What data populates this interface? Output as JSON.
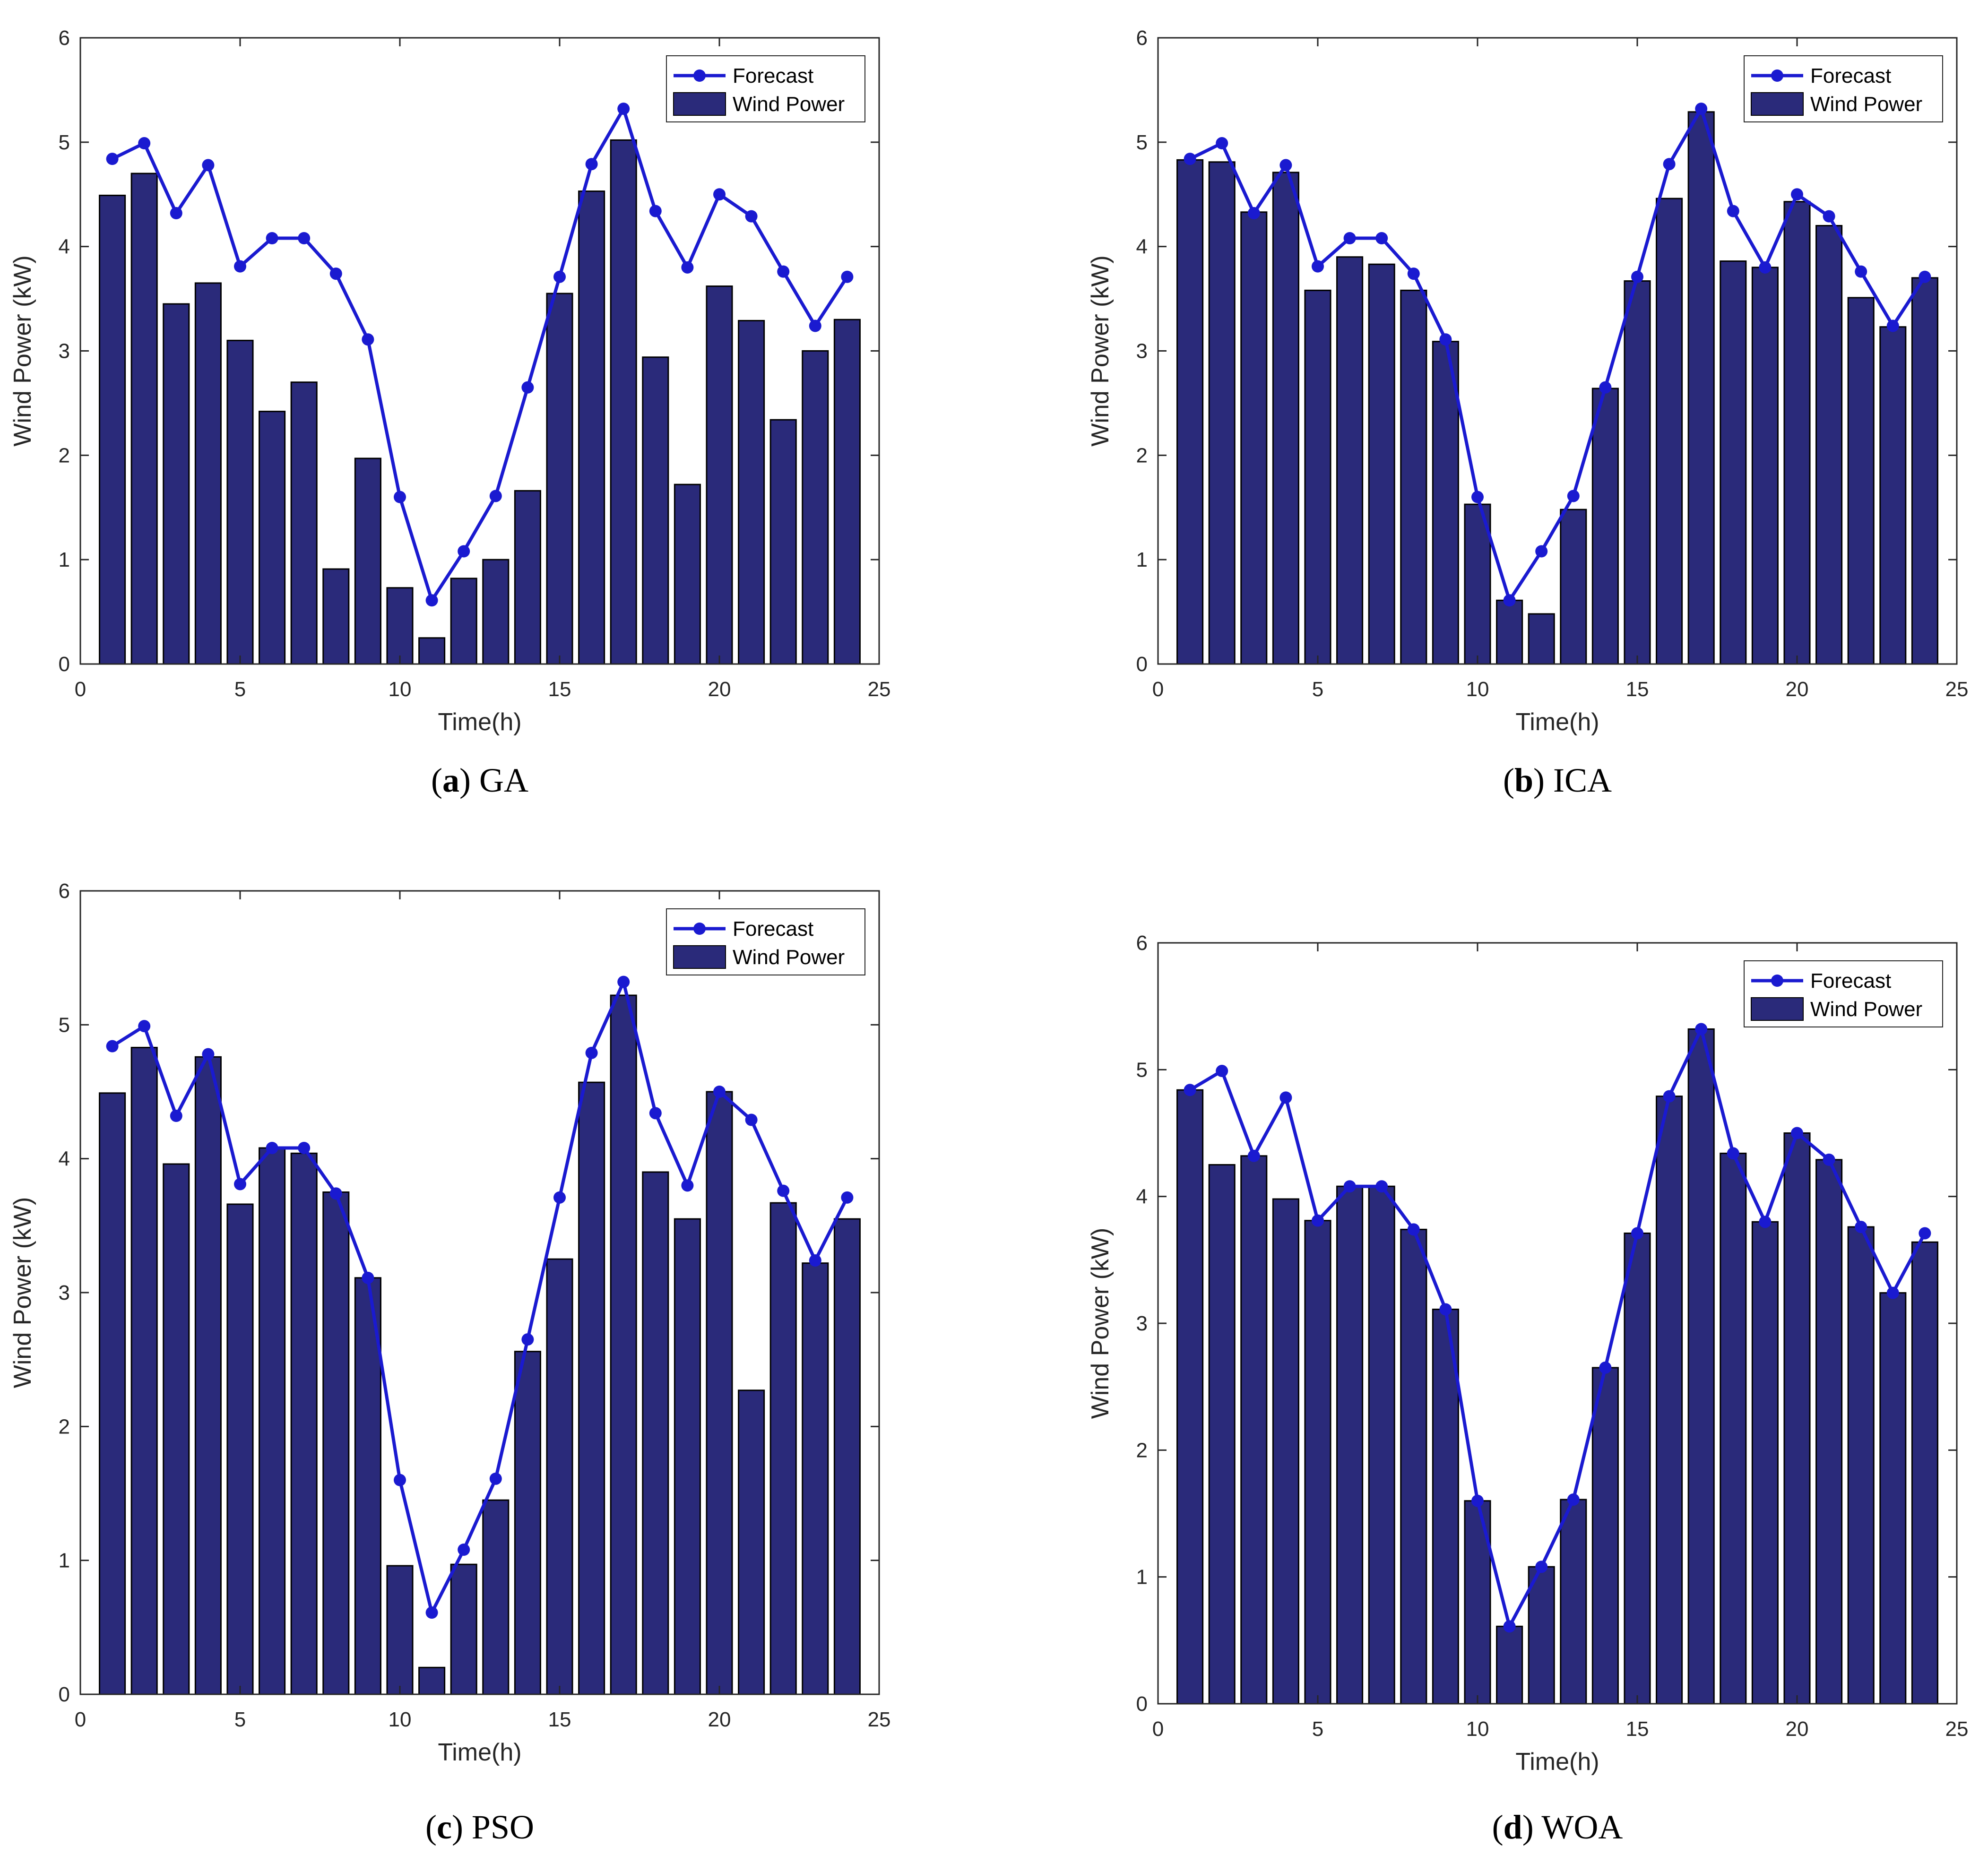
{
  "figure": {
    "colors": {
      "bar_fill": "#2a2a7a",
      "bar_edge": "#000000",
      "line": "#1a1ad0",
      "axes": "#262626",
      "background": "#ffffff"
    }
  },
  "chart_data": [
    {
      "type": "bar",
      "caption_letter": "a",
      "caption_text": "GA",
      "xlabel": "Time(h)",
      "ylabel": "Wind Power (kW)",
      "xlim": [
        0,
        25
      ],
      "ylim": [
        0,
        6
      ],
      "xticks": [
        0,
        5,
        10,
        15,
        20,
        25
      ],
      "yticks": [
        0,
        1,
        2,
        3,
        4,
        5,
        6
      ],
      "legend": {
        "location": "top-right",
        "entries": [
          "Forecast",
          "Wind Power"
        ]
      },
      "series": [
        {
          "name": "Wind Power",
          "kind": "bar",
          "x": [
            1,
            2,
            3,
            4,
            5,
            6,
            7,
            8,
            9,
            10,
            11,
            12,
            13,
            14,
            15,
            16,
            17,
            18,
            19,
            20,
            21,
            22,
            23,
            24
          ],
          "values": [
            4.49,
            4.7,
            3.45,
            3.65,
            3.1,
            2.42,
            2.7,
            0.91,
            1.97,
            0.73,
            0.25,
            0.82,
            1.0,
            1.66,
            3.55,
            4.53,
            5.02,
            2.94,
            1.72,
            3.62,
            3.29,
            2.34,
            3.0,
            3.3
          ]
        },
        {
          "name": "Forecast",
          "kind": "line",
          "x": [
            1,
            2,
            3,
            4,
            5,
            6,
            7,
            8,
            9,
            10,
            11,
            12,
            13,
            14,
            15,
            16,
            17,
            18,
            19,
            20,
            21,
            22,
            23,
            24
          ],
          "values": [
            4.84,
            4.99,
            4.32,
            4.78,
            3.81,
            4.08,
            4.08,
            3.74,
            3.11,
            1.6,
            0.61,
            1.08,
            1.61,
            2.65,
            3.71,
            4.79,
            5.32,
            4.34,
            3.8,
            4.5,
            4.29,
            3.76,
            3.24,
            3.71
          ]
        }
      ]
    },
    {
      "type": "bar",
      "caption_letter": "b",
      "caption_text": "ICA",
      "xlabel": "Time(h)",
      "ylabel": "Wind Power (kW)",
      "xlim": [
        0,
        25
      ],
      "ylim": [
        0,
        6
      ],
      "xticks": [
        0,
        5,
        10,
        15,
        20,
        25
      ],
      "yticks": [
        0,
        1,
        2,
        3,
        4,
        5,
        6
      ],
      "legend": {
        "location": "top-right",
        "entries": [
          "Forecast",
          "Wind Power"
        ]
      },
      "series": [
        {
          "name": "Wind Power",
          "kind": "bar",
          "x": [
            1,
            2,
            3,
            4,
            5,
            6,
            7,
            8,
            9,
            10,
            11,
            12,
            13,
            14,
            15,
            16,
            17,
            18,
            19,
            20,
            21,
            22,
            23,
            24
          ],
          "values": [
            4.83,
            4.81,
            4.33,
            4.71,
            3.58,
            3.9,
            3.83,
            3.58,
            3.09,
            1.53,
            0.61,
            0.48,
            1.48,
            2.64,
            3.67,
            4.46,
            5.29,
            3.86,
            3.8,
            4.43,
            4.2,
            3.51,
            3.23,
            3.7
          ]
        },
        {
          "name": "Forecast",
          "kind": "line",
          "x": [
            1,
            2,
            3,
            4,
            5,
            6,
            7,
            8,
            9,
            10,
            11,
            12,
            13,
            14,
            15,
            16,
            17,
            18,
            19,
            20,
            21,
            22,
            23,
            24
          ],
          "values": [
            4.84,
            4.99,
            4.32,
            4.78,
            3.81,
            4.08,
            4.08,
            3.74,
            3.11,
            1.6,
            0.61,
            1.08,
            1.61,
            2.65,
            3.71,
            4.79,
            5.32,
            4.34,
            3.8,
            4.5,
            4.29,
            3.76,
            3.24,
            3.71
          ]
        }
      ]
    },
    {
      "type": "bar",
      "caption_letter": "c",
      "caption_text": "PSO",
      "xlabel": "Time(h)",
      "ylabel": "Wind Power (kW)",
      "xlim": [
        0,
        25
      ],
      "ylim": [
        0,
        6
      ],
      "xticks": [
        0,
        5,
        10,
        15,
        20,
        25
      ],
      "yticks": [
        0,
        1,
        2,
        3,
        4,
        5,
        6
      ],
      "legend": {
        "location": "top-right",
        "entries": [
          "Forecast",
          "Wind Power"
        ]
      },
      "series": [
        {
          "name": "Wind Power",
          "kind": "bar",
          "x": [
            1,
            2,
            3,
            4,
            5,
            6,
            7,
            8,
            9,
            10,
            11,
            12,
            13,
            14,
            15,
            16,
            17,
            18,
            19,
            20,
            21,
            22,
            23,
            24
          ],
          "values": [
            4.49,
            4.83,
            3.96,
            4.76,
            3.66,
            4.08,
            4.04,
            3.75,
            3.11,
            0.96,
            0.2,
            0.97,
            1.45,
            2.56,
            3.25,
            4.57,
            5.22,
            3.9,
            3.55,
            4.5,
            2.27,
            3.67,
            3.22,
            3.55
          ]
        },
        {
          "name": "Forecast",
          "kind": "line",
          "x": [
            1,
            2,
            3,
            4,
            5,
            6,
            7,
            8,
            9,
            10,
            11,
            12,
            13,
            14,
            15,
            16,
            17,
            18,
            19,
            20,
            21,
            22,
            23,
            24
          ],
          "values": [
            4.84,
            4.99,
            4.32,
            4.78,
            3.81,
            4.08,
            4.08,
            3.74,
            3.11,
            1.6,
            0.61,
            1.08,
            1.61,
            2.65,
            3.71,
            4.79,
            5.32,
            4.34,
            3.8,
            4.5,
            4.29,
            3.76,
            3.24,
            3.71
          ]
        }
      ]
    },
    {
      "type": "bar",
      "caption_letter": "d",
      "caption_text": "WOA",
      "xlabel": "Time(h)",
      "ylabel": "Wind Power (kW)",
      "xlim": [
        0,
        25
      ],
      "ylim": [
        0,
        6
      ],
      "xticks": [
        0,
        5,
        10,
        15,
        20,
        25
      ],
      "yticks": [
        0,
        1,
        2,
        3,
        4,
        5,
        6
      ],
      "legend": {
        "location": "top-right",
        "entries": [
          "Forecast",
          "Wind Power"
        ]
      },
      "series": [
        {
          "name": "Wind Power",
          "kind": "bar",
          "x": [
            1,
            2,
            3,
            4,
            5,
            6,
            7,
            8,
            9,
            10,
            11,
            12,
            13,
            14,
            15,
            16,
            17,
            18,
            19,
            20,
            21,
            22,
            23,
            24
          ],
          "values": [
            4.84,
            4.25,
            4.32,
            3.98,
            3.81,
            4.08,
            4.08,
            3.74,
            3.11,
            1.6,
            0.61,
            1.08,
            1.61,
            2.65,
            3.71,
            4.79,
            5.32,
            4.34,
            3.8,
            4.5,
            4.29,
            3.76,
            3.24,
            3.64
          ]
        },
        {
          "name": "Forecast",
          "kind": "line",
          "x": [
            1,
            2,
            3,
            4,
            5,
            6,
            7,
            8,
            9,
            10,
            11,
            12,
            13,
            14,
            15,
            16,
            17,
            18,
            19,
            20,
            21,
            22,
            23,
            24
          ],
          "values": [
            4.84,
            4.99,
            4.32,
            4.78,
            3.81,
            4.08,
            4.08,
            3.74,
            3.11,
            1.6,
            0.61,
            1.08,
            1.61,
            2.65,
            3.71,
            4.79,
            5.32,
            4.34,
            3.8,
            4.5,
            4.29,
            3.76,
            3.24,
            3.71
          ]
        }
      ]
    }
  ]
}
